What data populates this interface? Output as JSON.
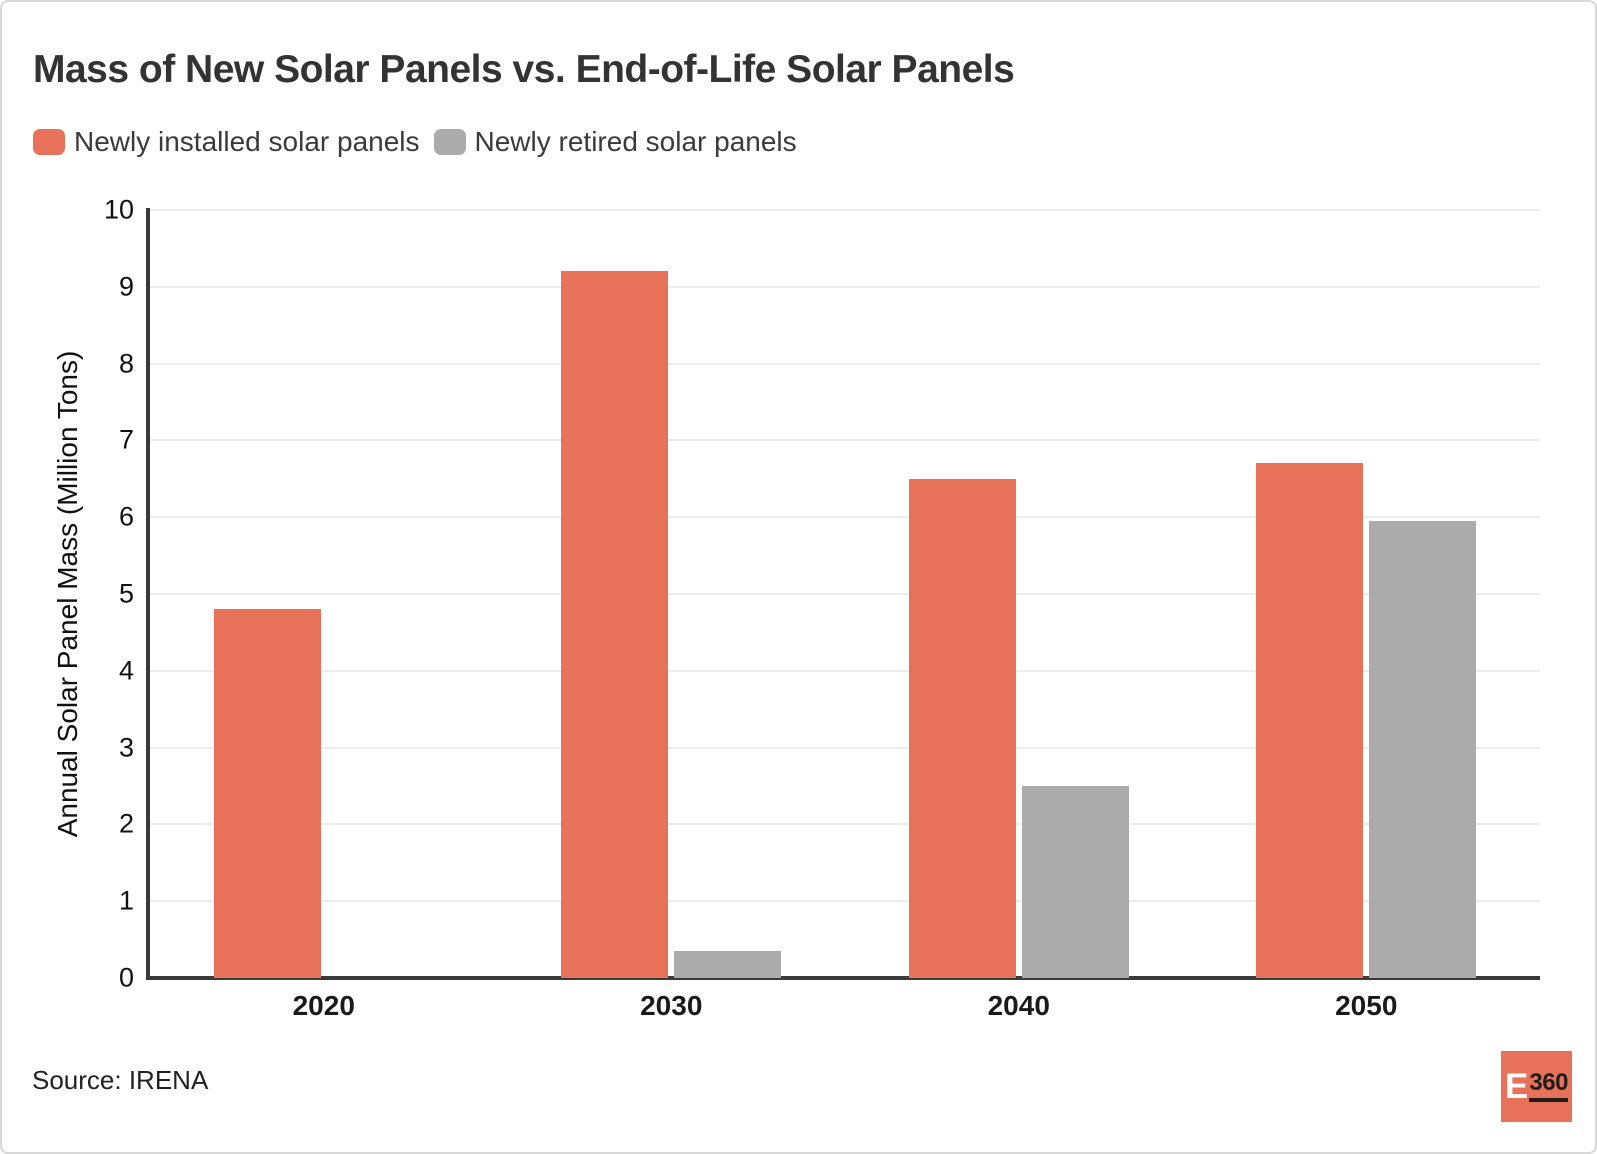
{
  "page": {
    "title": "Mass of New Solar Panels vs. End-of-Life Solar Panels",
    "source_text": "Source: IRENA",
    "logo": {
      "letter": "E",
      "number": "360",
      "background": "#e8715a"
    }
  },
  "legend": [
    {
      "label": "Newly installed solar panels",
      "color": "#e8715a",
      "swatch_icon": "rounded-square"
    },
    {
      "label": "Newly retired solar panels",
      "color": "#ababab",
      "swatch_icon": "rounded-square"
    }
  ],
  "chart_data": {
    "type": "bar",
    "title": "Mass of New Solar Panels vs. End-of-Life Solar Panels",
    "categories": [
      "2020",
      "2030",
      "2040",
      "2050"
    ],
    "series": [
      {
        "name": "Newly installed solar panels",
        "color": "#e8715a",
        "values": [
          4.8,
          9.2,
          6.5,
          6.7
        ]
      },
      {
        "name": "Newly retired solar panels",
        "color": "#ababab",
        "values": [
          0,
          0.35,
          2.5,
          5.95
        ]
      }
    ],
    "xlabel": "",
    "ylabel": "Annual Solar Panel Mass (Million Tons)",
    "ylim": [
      0,
      10
    ],
    "ytick_step": 1,
    "yticks": [
      0,
      1,
      2,
      3,
      4,
      5,
      6,
      7,
      8,
      9,
      10
    ],
    "grid": true,
    "legend_position": "top-left",
    "colors": {
      "axis": "#3a3a3a",
      "gridline": "#ededed",
      "title_text": "#333333",
      "tick_text": "#111111",
      "xlabel_text": "#1a1a1a",
      "legend_text": "#3a3a3a",
      "source_text": "#222222"
    }
  }
}
